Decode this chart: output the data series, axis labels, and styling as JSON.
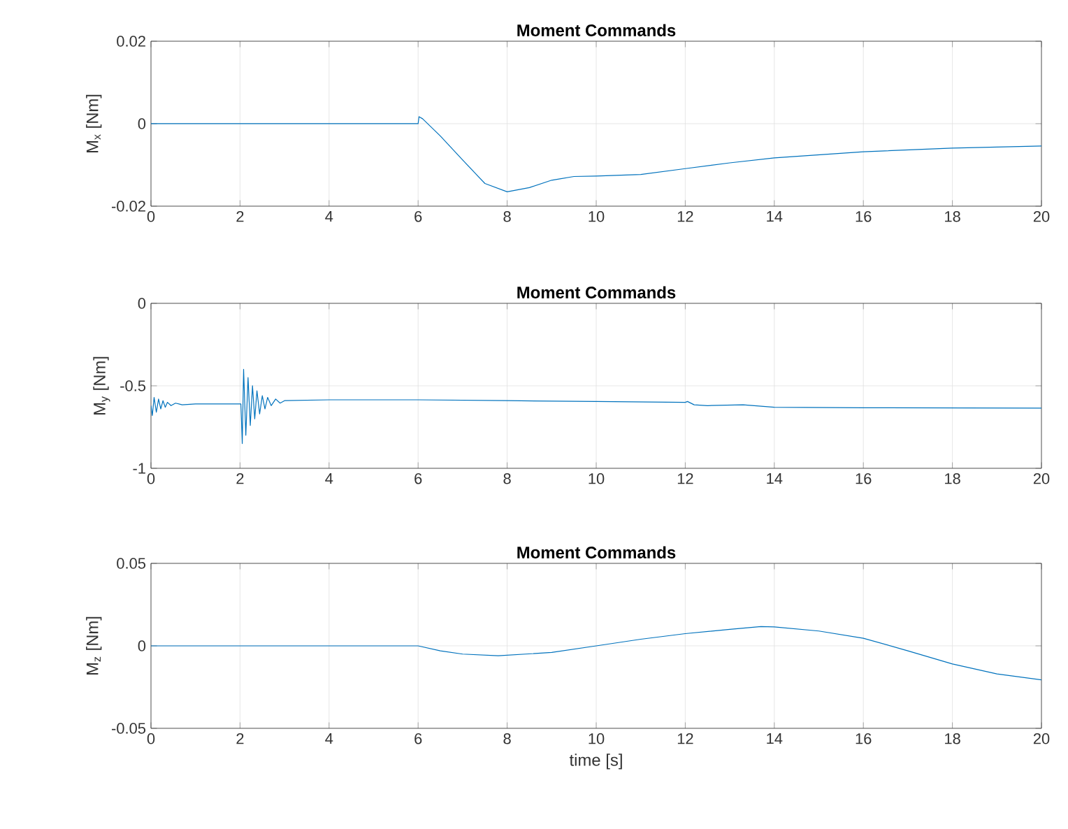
{
  "chart_data": [
    {
      "type": "line",
      "title": "Moment Commands",
      "ylabel": "M$_{x}$ [Nm]",
      "xlim": [
        0,
        20
      ],
      "xticks": [
        0,
        2,
        4,
        6,
        8,
        10,
        12,
        14,
        16,
        18,
        20
      ],
      "ylim": [
        -0.02,
        0.02
      ],
      "yticks": [
        -0.02,
        0,
        0.02
      ],
      "grid": true,
      "series": [
        {
          "color": "#0072bd",
          "x": [
            0,
            2,
            4,
            6,
            6.02,
            6.1,
            6.5,
            7,
            7.5,
            8,
            8.5,
            9,
            9.5,
            10,
            11,
            12,
            13,
            14,
            16,
            18,
            20
          ],
          "values": [
            0,
            0,
            0,
            0,
            0.0017,
            0.0012,
            -0.003,
            -0.0088,
            -0.0145,
            -0.0165,
            -0.0155,
            -0.0137,
            -0.0128,
            -0.0127,
            -0.0123,
            -0.0109,
            -0.0095,
            -0.0083,
            -0.0068,
            -0.0059,
            -0.0054
          ]
        }
      ]
    },
    {
      "type": "line",
      "title": "Moment Commands",
      "ylabel": "M$_{y}$ [Nm]",
      "xlim": [
        0,
        20
      ],
      "xticks": [
        0,
        2,
        4,
        6,
        8,
        10,
        12,
        14,
        16,
        18,
        20
      ],
      "ylim": [
        -1,
        0
      ],
      "yticks": [
        -1,
        -0.5,
        0
      ],
      "grid": true,
      "series": [
        {
          "color": "#0072bd",
          "x": [
            0,
            0.03,
            0.07,
            0.12,
            0.17,
            0.22,
            0.27,
            0.32,
            0.37,
            0.45,
            0.55,
            0.7,
            1,
            2,
            2.02,
            2.05,
            2.08,
            2.13,
            2.18,
            2.23,
            2.28,
            2.33,
            2.38,
            2.44,
            2.5,
            2.56,
            2.62,
            2.7,
            2.8,
            2.9,
            3,
            4,
            6,
            8,
            10,
            12,
            12.05,
            12.2,
            12.5,
            13.3,
            14,
            16,
            20
          ],
          "values": [
            -0.62,
            -0.68,
            -0.57,
            -0.66,
            -0.58,
            -0.64,
            -0.59,
            -0.63,
            -0.6,
            -0.62,
            -0.605,
            -0.615,
            -0.61,
            -0.61,
            -0.61,
            -0.85,
            -0.4,
            -0.8,
            -0.45,
            -0.74,
            -0.5,
            -0.7,
            -0.53,
            -0.67,
            -0.56,
            -0.64,
            -0.57,
            -0.62,
            -0.58,
            -0.605,
            -0.59,
            -0.585,
            -0.585,
            -0.59,
            -0.595,
            -0.6,
            -0.595,
            -0.615,
            -0.62,
            -0.615,
            -0.63,
            -0.633,
            -0.635
          ]
        }
      ]
    },
    {
      "type": "line",
      "title": "Moment Commands",
      "xlabel": "time [s]",
      "ylabel": "M$_{z}$ [Nm]",
      "xlim": [
        0,
        20
      ],
      "xticks": [
        0,
        2,
        4,
        6,
        8,
        10,
        12,
        14,
        16,
        18,
        20
      ],
      "ylim": [
        -0.05,
        0.05
      ],
      "yticks": [
        -0.05,
        0,
        0.05
      ],
      "grid": true,
      "series": [
        {
          "color": "#0072bd",
          "x": [
            0,
            2,
            4,
            6,
            6.5,
            7,
            7.8,
            9,
            10,
            11,
            12,
            13,
            13.7,
            14,
            15,
            16,
            17,
            18,
            19,
            20
          ],
          "values": [
            0,
            0,
            0,
            0,
            -0.003,
            -0.005,
            -0.006,
            -0.004,
            0,
            0.004,
            0.0074,
            0.01,
            0.0117,
            0.0115,
            0.009,
            0.0046,
            -0.003,
            -0.011,
            -0.017,
            -0.0206
          ]
        }
      ]
    }
  ]
}
